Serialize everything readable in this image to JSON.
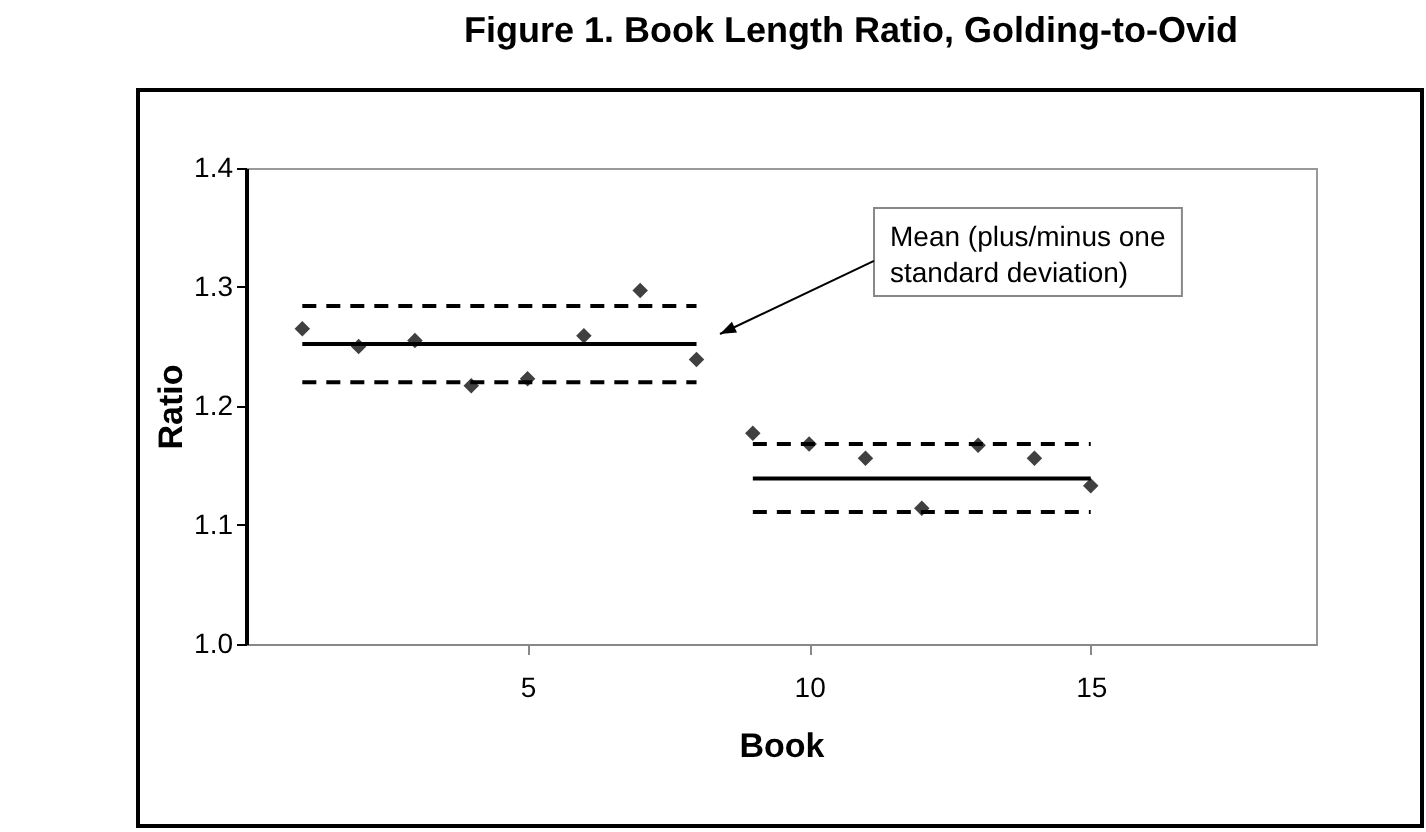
{
  "chart_data": {
    "type": "scatter",
    "title": "Figure 1. Book Length Ratio, Golding-to-Ovid",
    "xlabel": "Book",
    "ylabel": "Ratio",
    "xlim": [
      0,
      19
    ],
    "xticks": [
      5,
      10,
      15
    ],
    "ylim": [
      1.0,
      1.4
    ],
    "yticks": [
      {
        "value": 1.0,
        "label": "1.0"
      },
      1.1,
      1.2,
      1.3,
      1.4
    ],
    "grid": false,
    "marker": "diamond",
    "series": [
      {
        "color": "#404040",
        "x": [
          1,
          2,
          3,
          4,
          5,
          6,
          7,
          8,
          9,
          10,
          11,
          12,
          13,
          14,
          15
        ],
        "values": [
          1.265,
          1.25,
          1.255,
          1.217,
          1.223,
          1.259,
          1.297,
          1.239,
          1.177,
          1.168,
          1.156,
          1.114,
          1.167,
          1.156,
          1.133
        ]
      },
      {
        "type": "line",
        "marker": "none",
        "color": "#000000",
        "line_style": "solid",
        "x": [
          1,
          8
        ],
        "values": [
          1.252,
          1.252
        ]
      },
      {
        "type": "line",
        "marker": "none",
        "color": "#000000",
        "line_style": "dashed",
        "x": [
          1,
          8
        ],
        "values": [
          1.284,
          1.284
        ]
      },
      {
        "type": "line",
        "marker": "none",
        "color": "#000000",
        "line_style": "dashed",
        "x": [
          1,
          8
        ],
        "values": [
          1.22,
          1.22
        ]
      },
      {
        "type": "line",
        "marker": "none",
        "color": "#000000",
        "line_style": "solid",
        "x": [
          9,
          15
        ],
        "values": [
          1.139,
          1.139
        ]
      },
      {
        "type": "line",
        "marker": "none",
        "color": "#000000",
        "line_style": "dashed",
        "x": [
          9,
          15
        ],
        "values": [
          1.168,
          1.168
        ]
      },
      {
        "type": "line",
        "marker": "none",
        "color": "#000000",
        "line_style": "dashed",
        "x": [
          9,
          15
        ],
        "values": [
          1.111,
          1.111
        ]
      }
    ],
    "annotations": [
      "Mean (plus/minus one standard deviation)"
    ]
  }
}
